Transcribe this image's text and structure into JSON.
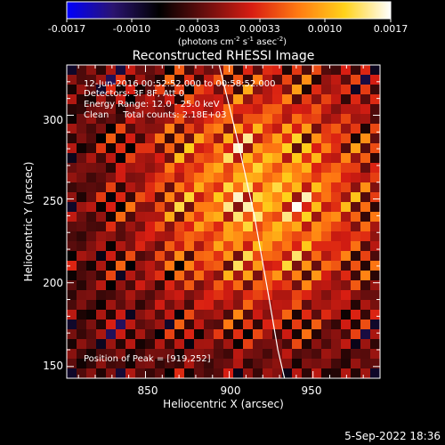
{
  "colorbar": {
    "tick_labels": [
      "-0.0017",
      "-0.0010",
      "-0.00033",
      "0.00033",
      "0.0010",
      "0.0017"
    ],
    "unit_prefix": "(photons cm",
    "unit_exp1": "-2",
    "unit_mid": " s",
    "unit_exp2": "-1",
    "unit_mid2": " asec",
    "unit_exp3": "-2",
    "unit_suffix": ")"
  },
  "image_info": {
    "time_range": "12-Jun-2016 00:52:52.000 to 00:58:52.000",
    "detectors": "Detectors: 3F 8F, Att 0",
    "energy": "Energy Range: 12.0 - 25.0 keV",
    "clean": "Clean     Total counts: 2.18E+03",
    "peak": "Position of Peak = [919,252]"
  },
  "footer_date": "5-Sep-2022 18:36",
  "chart_data": {
    "type": "heatmap",
    "title": "Reconstructed RHESSI Image",
    "xlabel": "Heliocentric X (arcsec)",
    "ylabel": "Heliocentric Y (arcsec)",
    "xlim": [
      803,
      990
    ],
    "ylim": [
      143,
      330
    ],
    "x_ticks": [
      850,
      900,
      950
    ],
    "y_ticks": [
      150,
      200,
      250,
      300
    ],
    "colorbar_range": [
      -0.0017,
      0.0017
    ],
    "colormap_colors": [
      "#0000ff",
      "#2a1470",
      "#000000",
      "#6a0e0e",
      "#d81d12",
      "#ff7a12",
      "#ffd21a",
      "#ffffff"
    ],
    "peak": {
      "x": 919,
      "y": 252
    },
    "limb_curve": [
      [
        894,
        330
      ],
      [
        905,
        285
      ],
      [
        915,
        240
      ],
      [
        923,
        195
      ],
      [
        929,
        160
      ],
      [
        933,
        143
      ]
    ]
  }
}
